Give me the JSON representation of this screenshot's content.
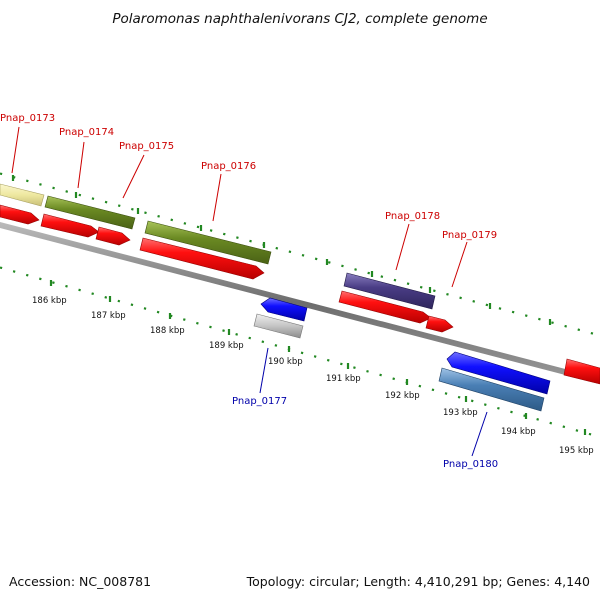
{
  "title": "Polaromonas naphthalenivorans CJ2, complete genome",
  "footer": {
    "accession": "Accession: NC_008781",
    "topology": "Topology: circular; Length: 4,410,291 bp; Genes: 4,140"
  },
  "kbp_labels": [
    "186 kbp",
    "187 kbp",
    "188 kbp",
    "189 kbp",
    "190 kbp",
    "191 kbp",
    "192 kbp",
    "193 kbp",
    "194 kbp",
    "195 kbp"
  ],
  "gene_labels": {
    "pnap_0173": "Pnap_0173",
    "pnap_0174": "Pnap_0174",
    "pnap_0175": "Pnap_0175",
    "pnap_0176": "Pnap_0176",
    "pnap_0177": "Pnap_0177",
    "pnap_0178": "Pnap_0178",
    "pnap_0179": "Pnap_0179",
    "pnap_0180": "Pnap_0180"
  },
  "colors": {
    "forward_label": "#cc0000",
    "reverse_label": "#0000aa",
    "red_cds": "#ee0000",
    "green_gene": "#6b8a23",
    "yellow_gene": "#eee8a0",
    "purple_gene": "#4a3d85",
    "gray_gene": "#c0c0c0",
    "blue_cds": "#0000ee",
    "steelblue_gene": "#4a7fb5",
    "backbone": "#777777",
    "ticks": "#228822"
  }
}
